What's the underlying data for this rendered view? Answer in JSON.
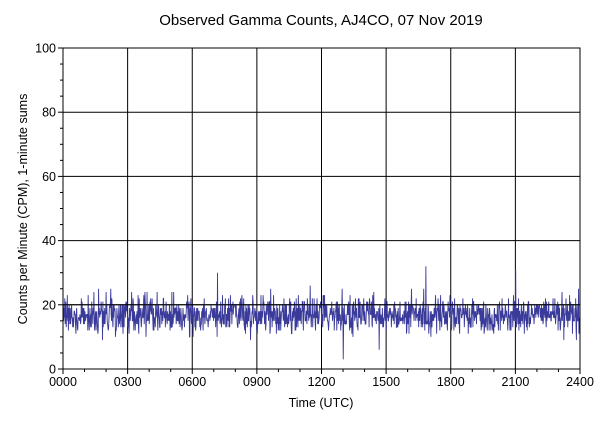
{
  "chart_data": {
    "type": "line",
    "title": "Observed Gamma Counts, AJ4CO, 07 Nov 2019",
    "xlabel": "Time (UTC)",
    "ylabel": "Counts per Minute (CPM), 1-minute sums",
    "xlim": [
      0,
      1440
    ],
    "ylim": [
      0,
      100
    ],
    "x_ticks": [
      0,
      180,
      360,
      540,
      720,
      900,
      1080,
      1260,
      1440
    ],
    "x_tick_labels": [
      "0000",
      "0300",
      "0600",
      "0900",
      "1200",
      "1500",
      "1800",
      "2100",
      "2400"
    ],
    "y_ticks": [
      0,
      20,
      40,
      60,
      80,
      100
    ],
    "y_tick_labels": [
      "0",
      "20",
      "40",
      "60",
      "80",
      "100"
    ],
    "reference_line_y": 20,
    "grid": true,
    "series": [
      {
        "color": "#3a3a9a",
        "x_unit": "minute of day (1-minute sums)",
        "generator": {
          "mean": 17,
          "min": 3,
          "max": 32,
          "count": 1440,
          "seed": 20191107
        },
        "values_sample": [
          17,
          20,
          15,
          19,
          16,
          22,
          14,
          18,
          21,
          13,
          17,
          16,
          23,
          15,
          19,
          12,
          18,
          20,
          16,
          14
        ]
      }
    ]
  }
}
